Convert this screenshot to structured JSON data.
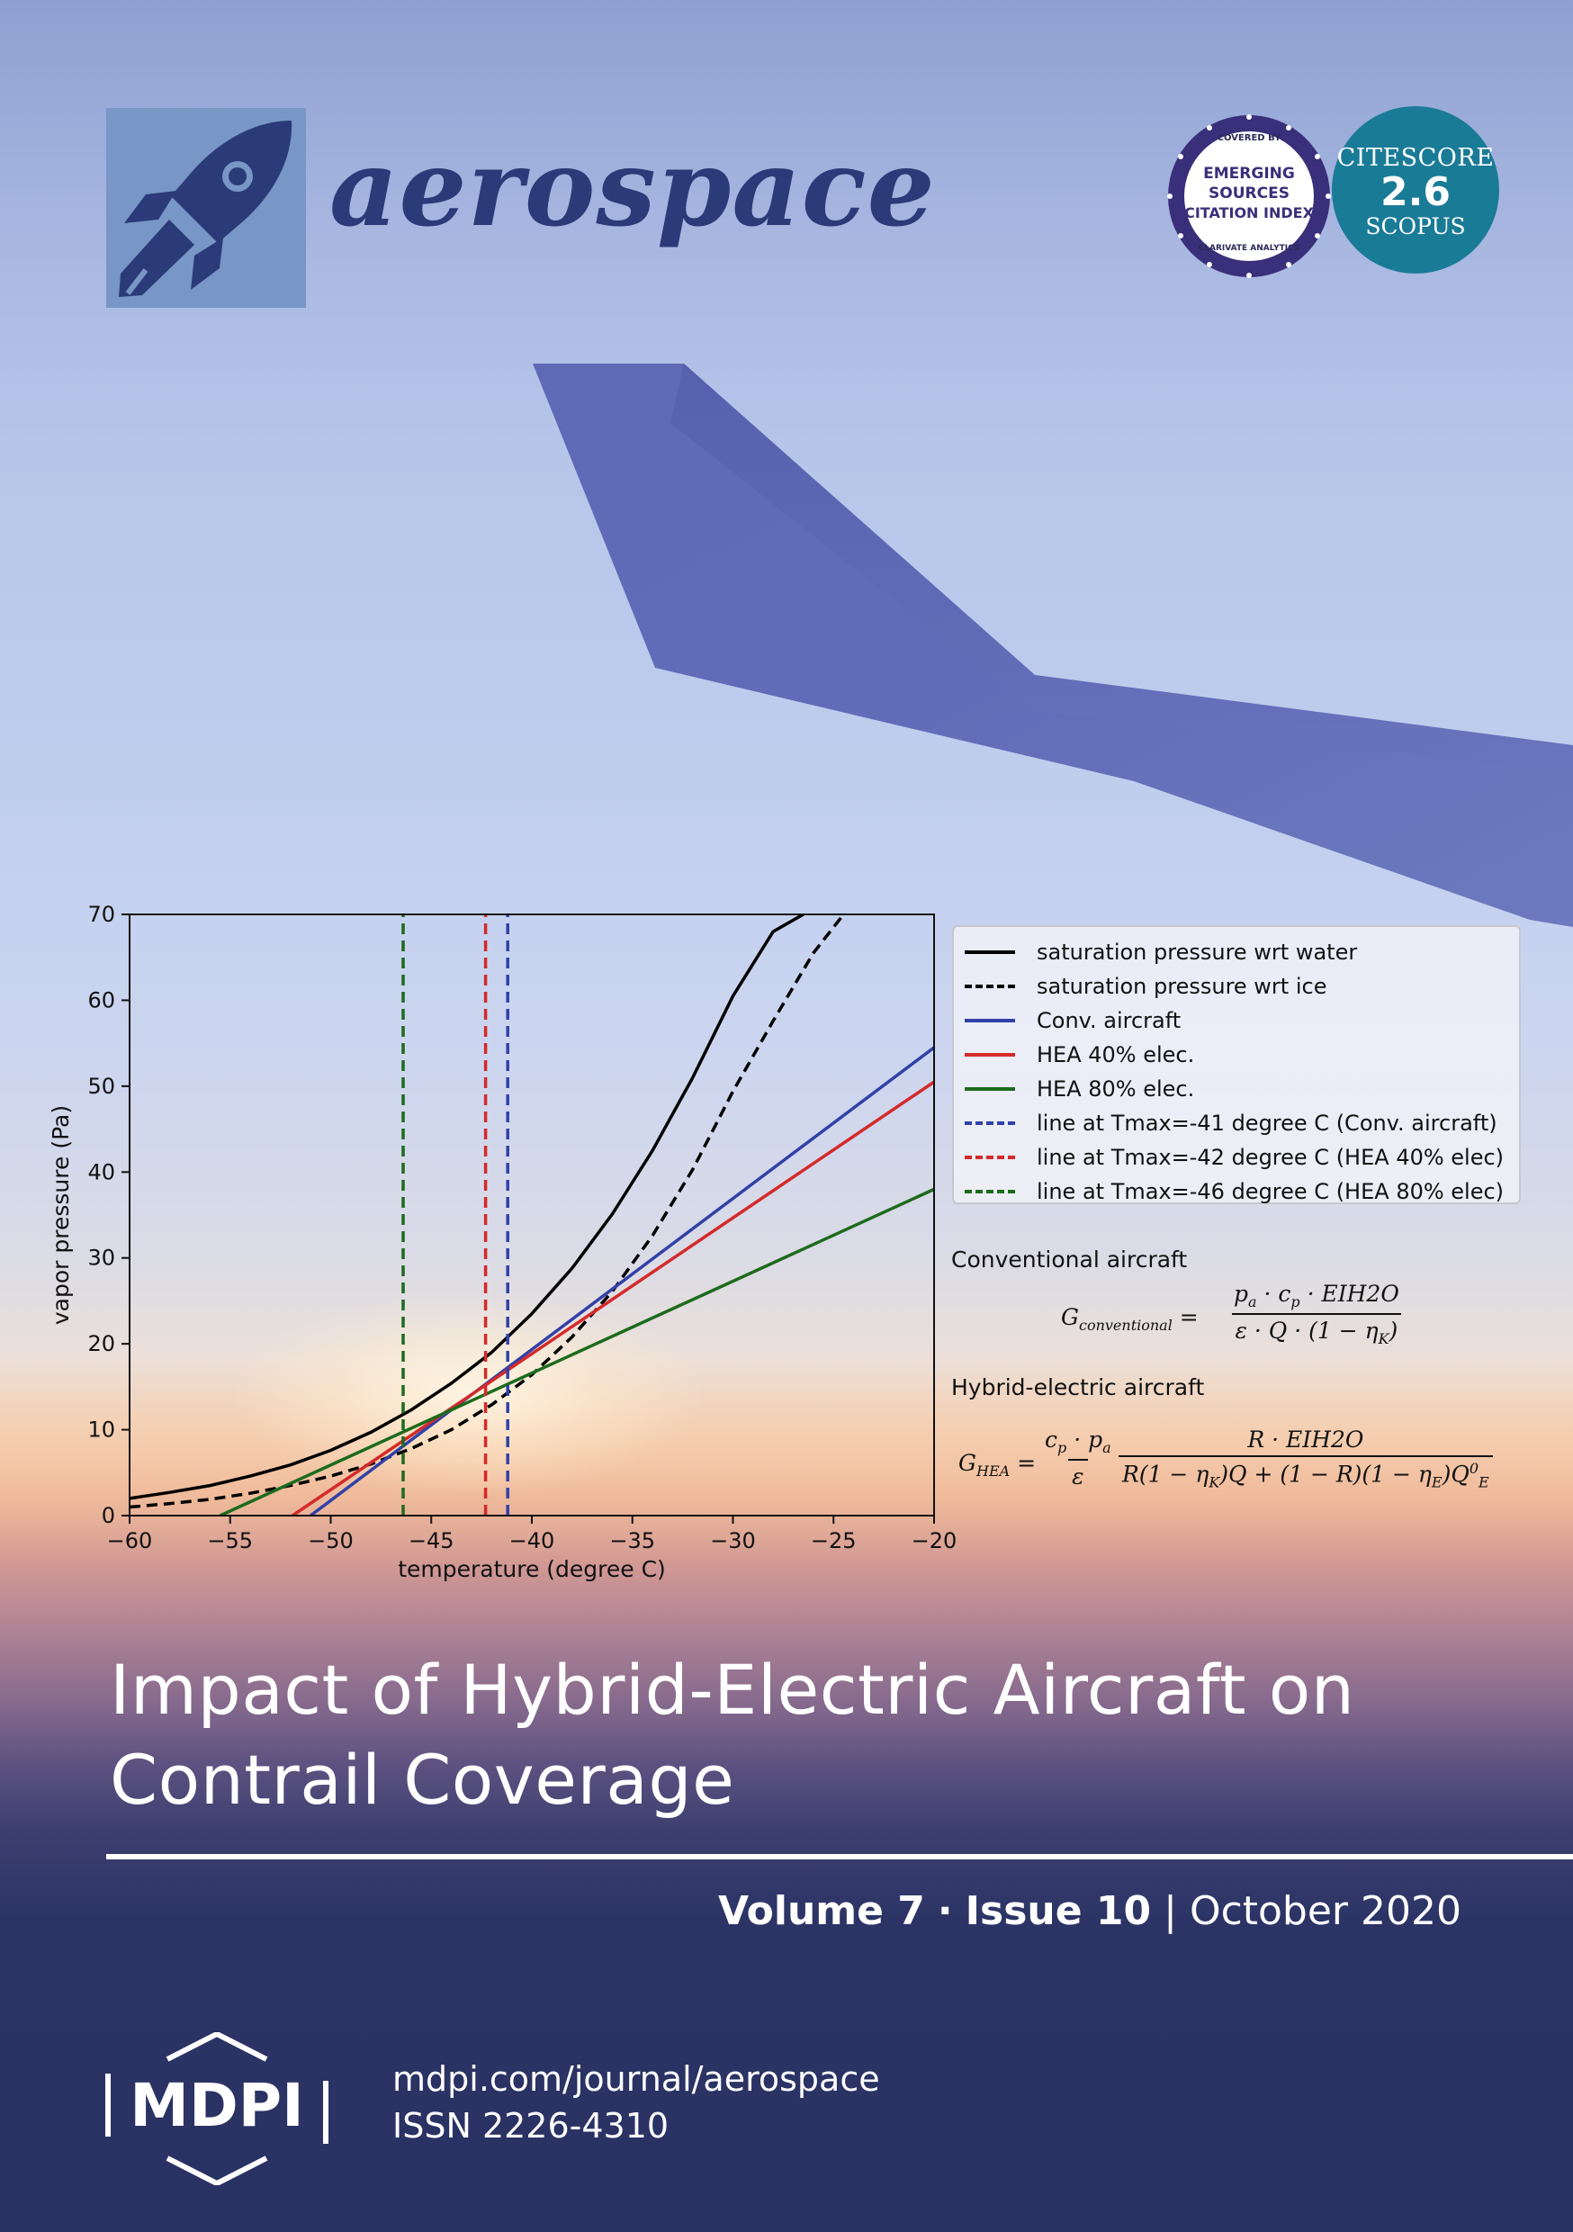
{
  "journal": {
    "name": "aerospace",
    "esci_badge": {
      "top_text": "COVERED BY",
      "line1": "EMERGING",
      "line2": "SOURCES",
      "line3": "CITATION INDEX",
      "bottom_text": "CLARIVATE ANALYTICS"
    },
    "citescore": {
      "label": "CITESCORE",
      "value": "2.6",
      "source": "SCOPUS"
    }
  },
  "chart_data": {
    "type": "line",
    "xlabel": "temperature (degree C)",
    "ylabel": "vapor pressure (Pa)",
    "xlim": [
      -60,
      -20
    ],
    "ylim": [
      0,
      70
    ],
    "xticks": [
      -60,
      -55,
      -50,
      -45,
      -40,
      -35,
      -30,
      -25,
      -20
    ],
    "xtick_labels": [
      "−60",
      "−55",
      "−50",
      "−45",
      "−40",
      "−35",
      "−30",
      "−25",
      "−20"
    ],
    "yticks": [
      0,
      10,
      20,
      30,
      40,
      50,
      60,
      70
    ],
    "grid": false,
    "legend_position": "outside-right",
    "series": [
      {
        "name": "saturation pressure wrt water",
        "color": "#000000",
        "dash": "solid",
        "x": [
          -60,
          -58,
          -56,
          -54,
          -52,
          -50,
          -48,
          -46,
          -44,
          -42,
          -40,
          -38,
          -36,
          -34,
          -32,
          -30,
          -28,
          -26.5
        ],
        "y": [
          2.0,
          2.7,
          3.5,
          4.6,
          5.9,
          7.6,
          9.7,
          12.3,
          15.4,
          19.0,
          23.5,
          28.8,
          35.1,
          42.5,
          51.0,
          60.5,
          68.0,
          70.0
        ]
      },
      {
        "name": "saturation pressure wrt ice",
        "color": "#000000",
        "dash": "dashed",
        "x": [
          -60,
          -58,
          -56,
          -54,
          -52,
          -50,
          -48,
          -46,
          -44,
          -42,
          -40,
          -38,
          -36,
          -34,
          -32,
          -30,
          -28,
          -26,
          -24.5
        ],
        "y": [
          1.0,
          1.4,
          1.9,
          2.6,
          3.5,
          4.6,
          6.0,
          7.8,
          10.0,
          12.9,
          16.4,
          20.8,
          26.1,
          32.6,
          40.3,
          49.4,
          57.6,
          65.5,
          70.0
        ]
      },
      {
        "name": "Conv. aircraft",
        "color": "#3041a8",
        "dash": "solid",
        "x": [
          -51,
          -20
        ],
        "y": [
          0,
          54.5
        ]
      },
      {
        "name": "HEA 40% elec.",
        "color": "#d42a2a",
        "dash": "solid",
        "x": [
          -51.9,
          -20
        ],
        "y": [
          0,
          50.5
        ]
      },
      {
        "name": "HEA 80% elec.",
        "color": "#1c6b1c",
        "dash": "solid",
        "x": [
          -55.5,
          -20
        ],
        "y": [
          0,
          38.0
        ]
      },
      {
        "name": "line at Tmax=-41 degree C (Conv. aircraft)",
        "color": "#3041a8",
        "dash": "dashed",
        "x": [
          -41.2,
          -41.2
        ],
        "y": [
          0,
          70
        ]
      },
      {
        "name": "line at Tmax=-42 degree C (HEA 40% elec)",
        "color": "#d42a2a",
        "dash": "dashed",
        "x": [
          -42.3,
          -42.3
        ],
        "y": [
          0,
          70
        ]
      },
      {
        "name": "line at Tmax=-46 degree C (HEA 80% elec)",
        "color": "#1c6b1c",
        "dash": "dashed",
        "x": [
          -46.4,
          -46.4
        ],
        "y": [
          0,
          70
        ]
      }
    ]
  },
  "formulas": {
    "conventional_heading": "Conventional aircraft",
    "hybrid_heading": "Hybrid-electric aircraft"
  },
  "article": {
    "title_line1": "Impact of Hybrid-Electric Aircraft on",
    "title_line2": "Contrail Coverage"
  },
  "issue": {
    "volume": "Volume 7",
    "separator": "·",
    "issue": "Issue 10",
    "divider": "|",
    "date": "October 2020"
  },
  "publisher": {
    "logo_text": "MDPI",
    "url": "mdpi.com/journal/aerospace",
    "issn": "ISSN 2226-4310"
  },
  "colors": {
    "journal_blue": "#2b3a78",
    "citescore_teal": "#1a7b97",
    "footer_navy": "#2a3163"
  }
}
